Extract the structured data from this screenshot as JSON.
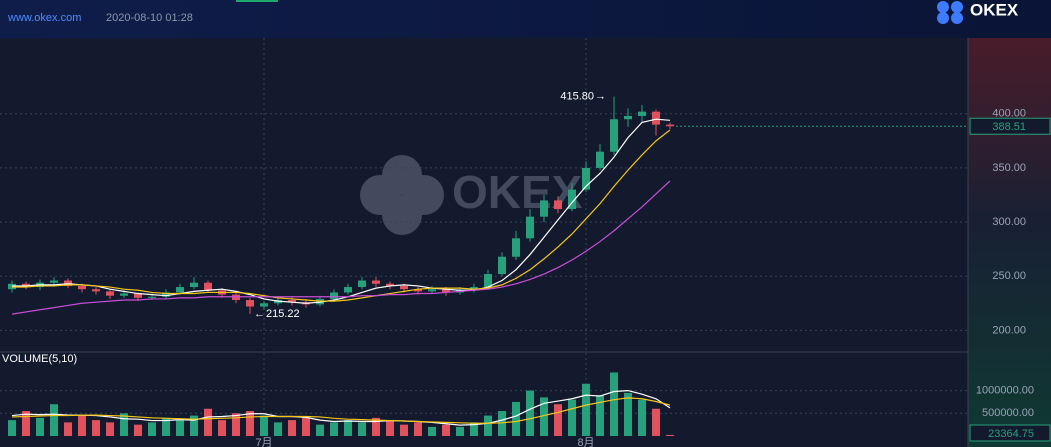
{
  "header": {
    "site": "www.okex.com",
    "datetime": "2020-08-10 01:28",
    "brand": "OKEX"
  },
  "watermark": "OKEX",
  "chart_data": {
    "type": "candlestick",
    "categories": [
      null,
      null,
      null,
      null,
      null,
      null,
      null,
      null,
      null,
      null,
      null,
      null,
      null,
      null,
      null,
      null,
      null,
      null,
      "7月",
      null,
      null,
      null,
      null,
      null,
      null,
      null,
      null,
      null,
      null,
      null,
      null,
      null,
      null,
      null,
      null,
      null,
      null,
      null,
      null,
      null,
      null,
      "8月",
      null,
      null,
      null,
      null,
      null,
      null
    ],
    "open": [
      238,
      243,
      240,
      244,
      246,
      241,
      238,
      236,
      232,
      234,
      230,
      231,
      235,
      240,
      244,
      237,
      233,
      228,
      222,
      225,
      228,
      226,
      224,
      229,
      235,
      240,
      246,
      243,
      241,
      238,
      236,
      238,
      235,
      237,
      240,
      252,
      268,
      285,
      305,
      320,
      312,
      330,
      350,
      365,
      395,
      398,
      402,
      390
    ],
    "high": [
      246,
      245,
      247,
      249,
      248,
      243,
      240,
      238,
      237,
      235,
      234,
      238,
      243,
      249,
      246,
      239,
      235,
      230,
      227,
      230,
      231,
      229,
      232,
      238,
      243,
      249,
      249,
      245,
      243,
      240,
      241,
      240,
      240,
      243,
      256,
      272,
      292,
      312,
      325,
      324,
      336,
      356,
      372,
      415.8,
      405,
      408,
      404,
      392
    ],
    "low": [
      235,
      238,
      237,
      241,
      239,
      235,
      233,
      229,
      230,
      227,
      228,
      229,
      233,
      238,
      235,
      230,
      225,
      215.22,
      219,
      223,
      223,
      221,
      222,
      227,
      233,
      238,
      240,
      238,
      235,
      233,
      234,
      232,
      233,
      235,
      238,
      250,
      265,
      282,
      300,
      308,
      310,
      328,
      348,
      362,
      388,
      392,
      380,
      386
    ],
    "close": [
      243,
      240,
      244,
      246,
      241,
      238,
      236,
      232,
      234,
      230,
      231,
      235,
      240,
      244,
      237,
      233,
      228,
      222,
      225,
      228,
      226,
      224,
      229,
      235,
      240,
      246,
      243,
      241,
      238,
      236,
      238,
      235,
      237,
      240,
      252,
      268,
      285,
      305,
      320,
      312,
      330,
      350,
      365,
      395,
      398,
      402,
      390,
      388.51
    ],
    "up_color": "#26a17b",
    "down_color": "#e0525e",
    "ma_series": [
      {
        "color": "#ffffff",
        "values": [
          241,
          241,
          242,
          242,
          243,
          242,
          241,
          238,
          236,
          234,
          233,
          232,
          234,
          236,
          237,
          238,
          236,
          233,
          229,
          227,
          226,
          225,
          226,
          228,
          231,
          235,
          239,
          241,
          242,
          241,
          239,
          238,
          237,
          237,
          240,
          246,
          256,
          270,
          286,
          302,
          318,
          333,
          345,
          360,
          378,
          392,
          395,
          394
        ]
      },
      {
        "color": "#f5c518",
        "values": [
          240,
          240,
          241,
          241,
          242,
          242,
          241,
          240,
          238,
          237,
          235,
          234,
          234,
          234,
          235,
          235,
          235,
          234,
          232,
          230,
          229,
          228,
          227,
          227,
          228,
          230,
          232,
          234,
          236,
          238,
          239,
          239,
          239,
          238,
          239,
          242,
          248,
          256,
          266,
          277,
          289,
          303,
          317,
          333,
          348,
          362,
          375,
          385
        ]
      },
      {
        "color": "#c94fd8",
        "values": [
          215,
          217,
          219,
          221,
          223,
          225,
          226,
          227,
          228,
          228,
          229,
          229,
          230,
          230,
          231,
          231,
          231,
          231,
          231,
          231,
          231,
          231,
          231,
          231,
          231,
          232,
          232,
          233,
          233,
          234,
          234,
          235,
          236,
          237,
          238,
          240,
          243,
          247,
          252,
          258,
          265,
          273,
          282,
          292,
          303,
          314,
          326,
          338
        ]
      }
    ],
    "ylim": [
      180,
      470
    ],
    "yticks": [
      {
        "value": 200,
        "label": "200.00"
      },
      {
        "value": 250,
        "label": "250.00"
      },
      {
        "value": 300,
        "label": "300.00"
      },
      {
        "value": 350,
        "label": "350.00"
      },
      {
        "value": 400,
        "label": "400.00"
      }
    ],
    "grid": true,
    "max_label": "415.80",
    "min_label": "215.22",
    "volume": {
      "title": "VOLUME(5,10)",
      "values": [
        350000,
        550000,
        400000,
        700000,
        300000,
        450000,
        350000,
        300000,
        500000,
        250000,
        300000,
        400000,
        350000,
        450000,
        600000,
        350000,
        500000,
        550000,
        450000,
        300000,
        350000,
        400000,
        250000,
        300000,
        350000,
        300000,
        400000,
        350000,
        250000,
        300000,
        200000,
        250000,
        200000,
        300000,
        450000,
        550000,
        750000,
        1000000,
        850000,
        700000,
        800000,
        1150000,
        900000,
        1400000,
        950000,
        800000,
        600000,
        23364.75
      ],
      "ma_series": [
        {
          "color": "#ffffff",
          "values": [
            450000,
            480000,
            470000,
            480000,
            460000,
            460000,
            450000,
            420000,
            380000,
            370000,
            340000,
            340000,
            360000,
            350000,
            420000,
            430000,
            450000,
            490000,
            490000,
            430000,
            430000,
            410000,
            350000,
            320000,
            330000,
            320000,
            320000,
            340000,
            330000,
            320000,
            300000,
            270000,
            240000,
            250000,
            280000,
            350000,
            440000,
            590000,
            720000,
            770000,
            820000,
            900000,
            880000,
            980000,
            1000000,
            920000,
            820000,
            620000
          ]
        },
        {
          "color": "#f5c518",
          "values": [
            420000,
            430000,
            440000,
            450000,
            450000,
            460000,
            460000,
            450000,
            440000,
            420000,
            400000,
            390000,
            380000,
            370000,
            380000,
            390000,
            400000,
            420000,
            430000,
            430000,
            430000,
            430000,
            420000,
            390000,
            370000,
            360000,
            350000,
            340000,
            330000,
            320000,
            310000,
            300000,
            290000,
            280000,
            280000,
            290000,
            320000,
            380000,
            450000,
            520000,
            600000,
            680000,
            740000,
            800000,
            840000,
            820000,
            760000,
            680000
          ]
        }
      ],
      "ylim": [
        0,
        1850000
      ],
      "yticks": [
        {
          "value": 500000,
          "label": "500000.00"
        },
        {
          "value": 1000000,
          "label": "1000000.00"
        }
      ]
    }
  }
}
